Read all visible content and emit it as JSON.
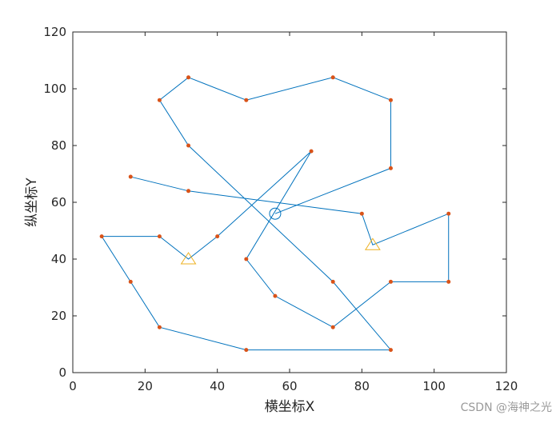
{
  "chart_data": {
    "type": "line",
    "xlabel": "横坐标X",
    "ylabel": "纵坐标Y",
    "xlim": [
      0,
      120
    ],
    "ylim": [
      0,
      120
    ],
    "xticks": [
      0,
      20,
      40,
      60,
      80,
      100,
      120
    ],
    "yticks": [
      0,
      20,
      40,
      60,
      80,
      100,
      120
    ],
    "route": {
      "color": "#0072bd",
      "x": [
        56,
        88,
        88,
        72,
        48,
        32,
        24,
        32,
        72,
        88,
        48,
        24,
        16,
        8,
        24,
        32,
        40,
        66,
        48,
        56,
        72,
        88,
        104,
        104,
        83,
        80,
        32,
        16
      ],
      "y": [
        56,
        72,
        96,
        104,
        96,
        104,
        96,
        80,
        32,
        8,
        8,
        16,
        32,
        48,
        48,
        40,
        48,
        78,
        40,
        27,
        16,
        32,
        32,
        56,
        45,
        56,
        64,
        69
      ]
    },
    "customers": {
      "color": "#d95319",
      "x": [
        88,
        88,
        72,
        48,
        32,
        24,
        32,
        72,
        88,
        48,
        24,
        16,
        8,
        24,
        40,
        66,
        48,
        56,
        72,
        88,
        104,
        104,
        80,
        32,
        16
      ],
      "y": [
        72,
        96,
        104,
        96,
        104,
        96,
        80,
        32,
        8,
        8,
        16,
        32,
        48,
        48,
        48,
        78,
        40,
        27,
        16,
        32,
        32,
        56,
        56,
        64,
        69
      ]
    },
    "depot": {
      "color": "#0072bd",
      "x": [
        56
      ],
      "y": [
        56
      ]
    },
    "stations": {
      "color": "#edb120",
      "x": [
        32,
        83
      ],
      "y": [
        40,
        45
      ]
    },
    "watermark": "CSDN @海神之光"
  }
}
